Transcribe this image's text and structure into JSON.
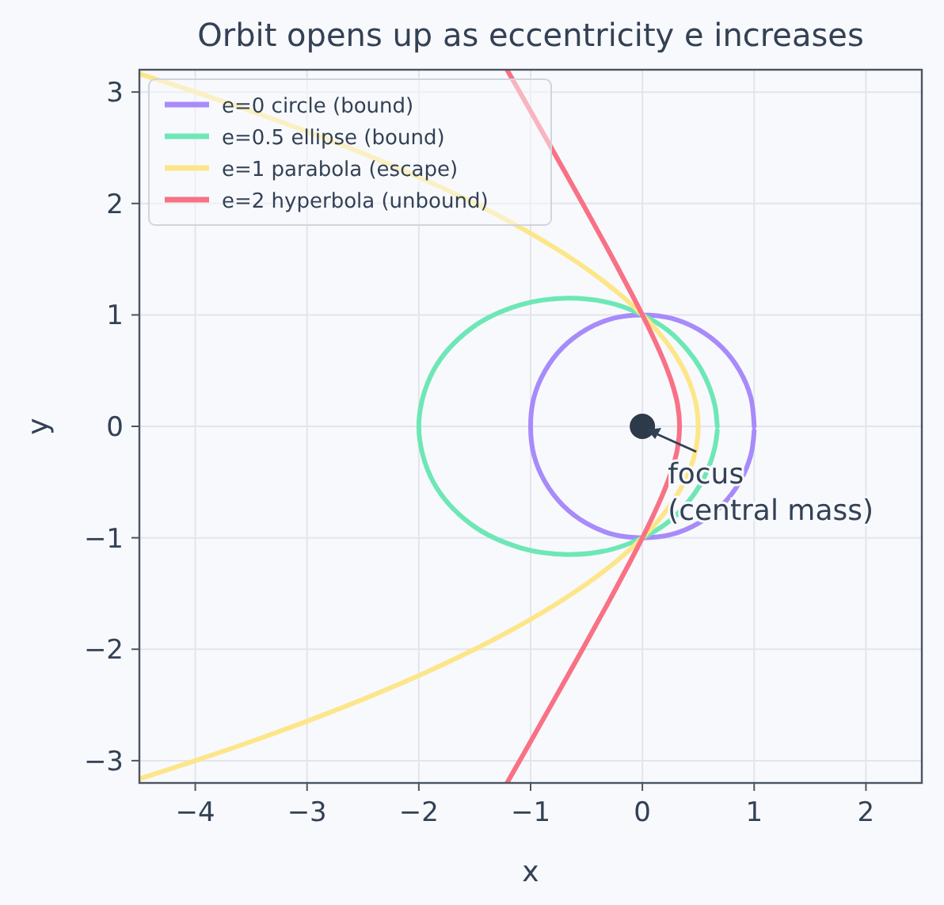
{
  "chart_data": {
    "type": "line",
    "title": "Orbit opens up as eccentricity e increases",
    "xlabel": "x",
    "ylabel": "y",
    "xlim": [
      -4.5,
      2.5
    ],
    "ylim": [
      -3.2,
      3.2
    ],
    "xticks": [
      -4,
      -3,
      -2,
      -1,
      0,
      1,
      2
    ],
    "yticks": [
      -3,
      -2,
      -1,
      0,
      1,
      2,
      3
    ],
    "grid": true,
    "legend": "top left",
    "marker": "none",
    "series": [
      {
        "name": "e=0 circle (bound)",
        "color": "#a78bfa",
        "x": [
          1,
          0.97,
          0.87,
          0.71,
          0.5,
          0.26,
          0,
          -0.26,
          -0.5,
          -0.71,
          -0.87,
          -0.97,
          -1,
          -0.97,
          -0.87,
          -0.71,
          -0.5,
          -0.26,
          0,
          0.26,
          0.5,
          0.71,
          0.87,
          0.97,
          1
        ],
        "values": [
          0,
          0.26,
          0.5,
          0.71,
          0.87,
          0.97,
          1,
          0.97,
          0.87,
          0.71,
          0.5,
          0.26,
          0,
          -0.26,
          -0.5,
          -0.71,
          -0.87,
          -0.97,
          -1,
          -0.97,
          -0.87,
          -0.71,
          -0.5,
          -0.26,
          -0.04
        ]
      },
      {
        "name": "e=0.5 ellipse (bound)",
        "color": "#6ee7b7",
        "x": [
          0.67,
          0.65,
          0.6,
          0.52,
          0.4,
          0.23,
          0,
          -0.3,
          -0.67,
          -1.09,
          -1.53,
          -1.87,
          -2,
          -1.87,
          -1.53,
          -1.09,
          -0.67,
          -0.3,
          0,
          0.23,
          0.4,
          0.52,
          0.6,
          0.65,
          0.67
        ],
        "values": [
          0,
          0.18,
          0.35,
          0.52,
          0.69,
          0.86,
          1,
          1.11,
          1.15,
          1.09,
          0.88,
          0.5,
          0,
          -0.5,
          -0.88,
          -1.09,
          -1.15,
          -1.11,
          -1,
          -0.86,
          -0.69,
          -0.52,
          -0.35,
          -0.18,
          -0.04
        ]
      },
      {
        "name": "e=1 parabola (escape)",
        "color": "#fde68a",
        "x": [
          -4.49,
          -4,
          -3.42,
          -2.88,
          -2.38,
          -1.92,
          -1.5,
          -1.12,
          -0.78,
          -0.48,
          -0.22,
          0,
          0.18,
          0.32,
          0.42,
          0.48,
          0.5,
          0.48,
          0.42,
          0.32,
          0.18,
          0,
          -0.22,
          -0.48,
          -0.78,
          -1.12,
          -1.5,
          -1.92,
          -2.38,
          -2.88,
          -3.42,
          -4,
          -4.49
        ],
        "values": [
          3.16,
          3,
          2.8,
          2.6,
          2.4,
          2.2,
          2,
          1.8,
          1.6,
          1.4,
          1.2,
          1,
          0.8,
          0.6,
          0.4,
          0.2,
          0,
          -0.2,
          -0.4,
          -0.6,
          -0.8,
          -1,
          -1.2,
          -1.4,
          -1.6,
          -1.8,
          -2,
          -2.2,
          -2.4,
          -2.6,
          -2.8,
          -3,
          -3.16
        ]
      },
      {
        "name": "e=2 hyperbola (unbound)",
        "color": "#f87185",
        "x": [
          -1.211,
          -0.984,
          -0.759,
          -0.535,
          -0.315,
          -0.102,
          0,
          0.097,
          0.186,
          0.261,
          0.314,
          0.333,
          0.314,
          0.261,
          0.186,
          0.097,
          0,
          -0.102,
          -0.315,
          -0.535,
          -0.759,
          -0.984,
          -1.211
        ],
        "values": [
          3.2,
          2.8,
          2.4,
          2,
          1.6,
          1.2,
          1,
          0.8,
          0.6,
          0.4,
          0.2,
          0,
          -0.2,
          -0.4,
          -0.6,
          -0.8,
          -1,
          -1.2,
          -1.6,
          -2,
          -2.4,
          -2.8,
          -3.2
        ]
      },
      {
        "type": "scatter",
        "color": "#2d3a4a",
        "marker": "circle",
        "x": [
          0
        ],
        "values": [
          0
        ]
      }
    ],
    "annotations": [
      {
        "text": "focus\n(central mass)",
        "x": 0,
        "y": 0
      }
    ]
  }
}
